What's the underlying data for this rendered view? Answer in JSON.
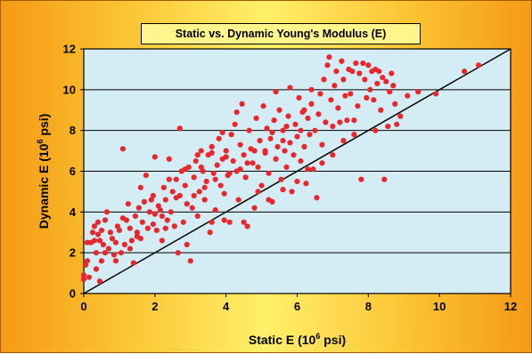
{
  "chart_data": {
    "type": "scatter",
    "title": "Static vs. Dynamic Young's Modulus (E)",
    "xlabel": {
      "prefix": "Static E (10",
      "sup": "6",
      "suffix": " psi)"
    },
    "ylabel": {
      "prefix": "Dynamic E (10",
      "sup": "6",
      "suffix": " psi)"
    },
    "xlim": [
      0,
      12
    ],
    "ylim": [
      0,
      12
    ],
    "x_ticks": [
      "0",
      "2",
      "4",
      "6",
      "8",
      "10",
      "12"
    ],
    "y_ticks": [
      "0",
      "2",
      "4",
      "6",
      "8",
      "10",
      "12"
    ],
    "grid": "horizontal",
    "legend": "none",
    "reference_line": {
      "x": [
        0,
        12
      ],
      "y": [
        0,
        12
      ]
    },
    "series": [
      {
        "marker_color": "#e8262d",
        "points": [
          [
            0.0,
            0.7
          ],
          [
            0.0,
            0.9
          ],
          [
            0.05,
            1.4
          ],
          [
            0.1,
            1.6
          ],
          [
            0.1,
            2.5
          ],
          [
            0.15,
            0.8
          ],
          [
            0.2,
            2.5
          ],
          [
            0.25,
            3.0
          ],
          [
            0.3,
            2.6
          ],
          [
            0.3,
            3.3
          ],
          [
            0.35,
            2.0
          ],
          [
            0.35,
            1.2
          ],
          [
            0.4,
            2.9
          ],
          [
            0.4,
            3.5
          ],
          [
            0.45,
            0.6
          ],
          [
            0.45,
            2.6
          ],
          [
            0.5,
            1.6
          ],
          [
            0.5,
            3.1
          ],
          [
            0.55,
            2.4
          ],
          [
            0.6,
            3.6
          ],
          [
            0.6,
            2.0
          ],
          [
            0.65,
            4.0
          ],
          [
            0.7,
            2.2
          ],
          [
            0.75,
            3.0
          ],
          [
            0.8,
            2.7
          ],
          [
            0.85,
            1.9
          ],
          [
            0.9,
            2.5
          ],
          [
            0.95,
            3.3
          ],
          [
            1.0,
            3.1
          ],
          [
            1.05,
            2.0
          ],
          [
            1.1,
            3.7
          ],
          [
            1.15,
            2.4
          ],
          [
            1.2,
            3.6
          ],
          [
            1.25,
            4.4
          ],
          [
            1.3,
            3.2
          ],
          [
            1.35,
            2.6
          ],
          [
            1.4,
            1.5
          ],
          [
            1.45,
            3.8
          ],
          [
            1.5,
            3.0
          ],
          [
            1.55,
            4.2
          ],
          [
            1.6,
            2.7
          ],
          [
            1.65,
            3.5
          ],
          [
            1.7,
            4.5
          ],
          [
            1.75,
            5.8
          ],
          [
            1.8,
            3.2
          ],
          [
            1.85,
            4.0
          ],
          [
            1.9,
            4.6
          ],
          [
            1.95,
            3.4
          ],
          [
            2.0,
            3.9
          ],
          [
            2.05,
            3.1
          ],
          [
            2.1,
            4.3
          ],
          [
            2.15,
            4.1
          ],
          [
            2.2,
            3.8
          ],
          [
            2.25,
            5.2
          ],
          [
            2.3,
            4.6
          ],
          [
            2.35,
            3.6
          ],
          [
            2.4,
            6.6
          ],
          [
            2.45,
            4.0
          ],
          [
            2.5,
            5.0
          ],
          [
            2.55,
            3.3
          ],
          [
            2.6,
            5.6
          ],
          [
            2.65,
            2.0
          ],
          [
            2.7,
            4.8
          ],
          [
            2.75,
            6.0
          ],
          [
            2.8,
            3.5
          ],
          [
            2.85,
            5.3
          ],
          [
            2.9,
            4.4
          ],
          [
            2.95,
            6.2
          ],
          [
            3.0,
            1.6
          ],
          [
            3.05,
            4.2
          ],
          [
            3.1,
            5.7
          ],
          [
            3.15,
            6.5
          ],
          [
            3.2,
            3.8
          ],
          [
            3.25,
            5.0
          ],
          [
            3.3,
            7.0
          ],
          [
            3.35,
            6.0
          ],
          [
            3.4,
            4.6
          ],
          [
            3.45,
            5.5
          ],
          [
            3.5,
            6.8
          ],
          [
            3.55,
            3.0
          ],
          [
            3.6,
            7.2
          ],
          [
            3.65,
            5.9
          ],
          [
            3.7,
            4.1
          ],
          [
            3.75,
            6.3
          ],
          [
            3.8,
            7.6
          ],
          [
            3.85,
            5.3
          ],
          [
            3.9,
            6.6
          ],
          [
            3.95,
            4.9
          ],
          [
            4.0,
            7.0
          ],
          [
            4.05,
            5.8
          ],
          [
            4.1,
            3.5
          ],
          [
            4.15,
            7.8
          ],
          [
            4.2,
            6.5
          ],
          [
            4.25,
            8.3
          ],
          [
            4.3,
            6.0
          ],
          [
            4.35,
            4.6
          ],
          [
            4.4,
            7.3
          ],
          [
            4.45,
            9.3
          ],
          [
            4.5,
            6.8
          ],
          [
            4.55,
            5.7
          ],
          [
            4.6,
            3.3
          ],
          [
            4.65,
            8.0
          ],
          [
            4.7,
            7.1
          ],
          [
            4.75,
            6.4
          ],
          [
            4.8,
            4.2
          ],
          [
            4.85,
            8.6
          ],
          [
            4.9,
            6.2
          ],
          [
            4.95,
            7.5
          ],
          [
            5.0,
            5.3
          ],
          [
            5.05,
            9.2
          ],
          [
            5.1,
            6.9
          ],
          [
            5.15,
            8.1
          ],
          [
            5.2,
            5.9
          ],
          [
            5.25,
            7.6
          ],
          [
            5.3,
            4.5
          ],
          [
            5.35,
            8.5
          ],
          [
            5.4,
            6.6
          ],
          [
            5.45,
            7.2
          ],
          [
            5.5,
            9.0
          ],
          [
            5.55,
            5.6
          ],
          [
            5.6,
            8.0
          ],
          [
            5.65,
            7.0
          ],
          [
            5.7,
            6.2
          ],
          [
            5.75,
            8.7
          ],
          [
            5.8,
            7.4
          ],
          [
            5.85,
            5.0
          ],
          [
            5.9,
            6.8
          ],
          [
            5.95,
            8.3
          ],
          [
            6.0,
            7.7
          ],
          [
            6.05,
            9.6
          ],
          [
            6.1,
            6.5
          ],
          [
            6.15,
            8.9
          ],
          [
            6.2,
            7.2
          ],
          [
            6.25,
            5.4
          ],
          [
            6.3,
            8.6
          ],
          [
            6.35,
            7.8
          ],
          [
            6.4,
            9.3
          ],
          [
            6.45,
            6.1
          ],
          [
            6.5,
            8.0
          ],
          [
            6.55,
            4.7
          ],
          [
            6.6,
            8.8
          ],
          [
            6.65,
            9.8
          ],
          [
            6.7,
            7.3
          ],
          [
            6.75,
            10.5
          ],
          [
            6.8,
            8.4
          ],
          [
            6.85,
            11.2
          ],
          [
            6.9,
            11.6
          ],
          [
            6.95,
            9.5
          ],
          [
            7.0,
            8.2
          ],
          [
            7.05,
            10.2
          ],
          [
            7.1,
            10.9
          ],
          [
            7.15,
            9.1
          ],
          [
            7.2,
            8.4
          ],
          [
            7.25,
            11.4
          ],
          [
            7.3,
            10.5
          ],
          [
            7.35,
            9.7
          ],
          [
            7.4,
            8.5
          ],
          [
            7.45,
            11.0
          ],
          [
            7.5,
            9.8
          ],
          [
            7.55,
            10.9
          ],
          [
            7.6,
            8.5
          ],
          [
            7.65,
            11.3
          ],
          [
            7.7,
            9.2
          ],
          [
            7.75,
            10.8
          ],
          [
            7.8,
            5.6
          ],
          [
            7.85,
            11.3
          ],
          [
            7.9,
            10.5
          ],
          [
            7.95,
            9.6
          ],
          [
            8.0,
            11.2
          ],
          [
            8.05,
            10.0
          ],
          [
            8.1,
            10.9
          ],
          [
            8.15,
            9.5
          ],
          [
            8.2,
            11.0
          ],
          [
            8.25,
            10.3
          ],
          [
            8.3,
            10.9
          ],
          [
            8.35,
            9.0
          ],
          [
            8.4,
            10.6
          ],
          [
            8.45,
            5.6
          ],
          [
            8.5,
            10.4
          ],
          [
            8.55,
            8.2
          ],
          [
            8.6,
            9.9
          ],
          [
            8.65,
            10.8
          ],
          [
            8.7,
            10.2
          ],
          [
            8.75,
            9.3
          ],
          [
            8.9,
            8.7
          ],
          [
            9.1,
            9.7
          ],
          [
            9.4,
            9.9
          ],
          [
            9.9,
            9.8
          ],
          [
            10.7,
            10.9
          ],
          [
            11.1,
            11.2
          ],
          [
            1.1,
            7.1
          ],
          [
            1.6,
            5.2
          ],
          [
            2.0,
            6.7
          ],
          [
            2.7,
            8.1
          ],
          [
            3.3,
            6.2
          ],
          [
            3.9,
            7.9
          ],
          [
            4.3,
            8.9
          ],
          [
            5.4,
            9.9
          ],
          [
            5.8,
            10.1
          ],
          [
            6.2,
            9.0
          ],
          [
            6.4,
            10.0
          ],
          [
            1.3,
            2.2
          ],
          [
            2.2,
            2.6
          ],
          [
            2.9,
            2.4
          ],
          [
            3.6,
            3.5
          ],
          [
            3.95,
            3.6
          ],
          [
            4.5,
            3.5
          ],
          [
            4.9,
            5.0
          ],
          [
            5.2,
            4.6
          ],
          [
            5.6,
            5.1
          ],
          [
            6.0,
            5.5
          ],
          [
            6.3,
            6.1
          ],
          [
            6.7,
            6.4
          ],
          [
            7.0,
            6.8
          ],
          [
            7.3,
            7.5
          ],
          [
            7.6,
            7.8
          ],
          [
            8.2,
            8.0
          ],
          [
            8.8,
            8.3
          ],
          [
            0.9,
            1.6
          ],
          [
            1.5,
            2.8
          ],
          [
            2.3,
            3.2
          ],
          [
            2.6,
            4.7
          ],
          [
            3.1,
            4.8
          ],
          [
            3.4,
            5.2
          ],
          [
            3.7,
            5.6
          ],
          [
            4.1,
            5.9
          ],
          [
            4.6,
            6.4
          ],
          [
            5.1,
            7.0
          ],
          [
            5.6,
            7.5
          ],
          [
            6.1,
            8.0
          ],
          [
            1.95,
            4.8
          ],
          [
            2.4,
            5.6
          ],
          [
            2.85,
            6.1
          ],
          [
            3.2,
            6.8
          ],
          [
            3.6,
            6.9
          ],
          [
            4.0,
            6.7
          ],
          [
            4.4,
            6.1
          ],
          [
            4.8,
            7.0
          ],
          [
            5.3,
            7.9
          ],
          [
            5.7,
            8.2
          ]
        ]
      }
    ]
  }
}
